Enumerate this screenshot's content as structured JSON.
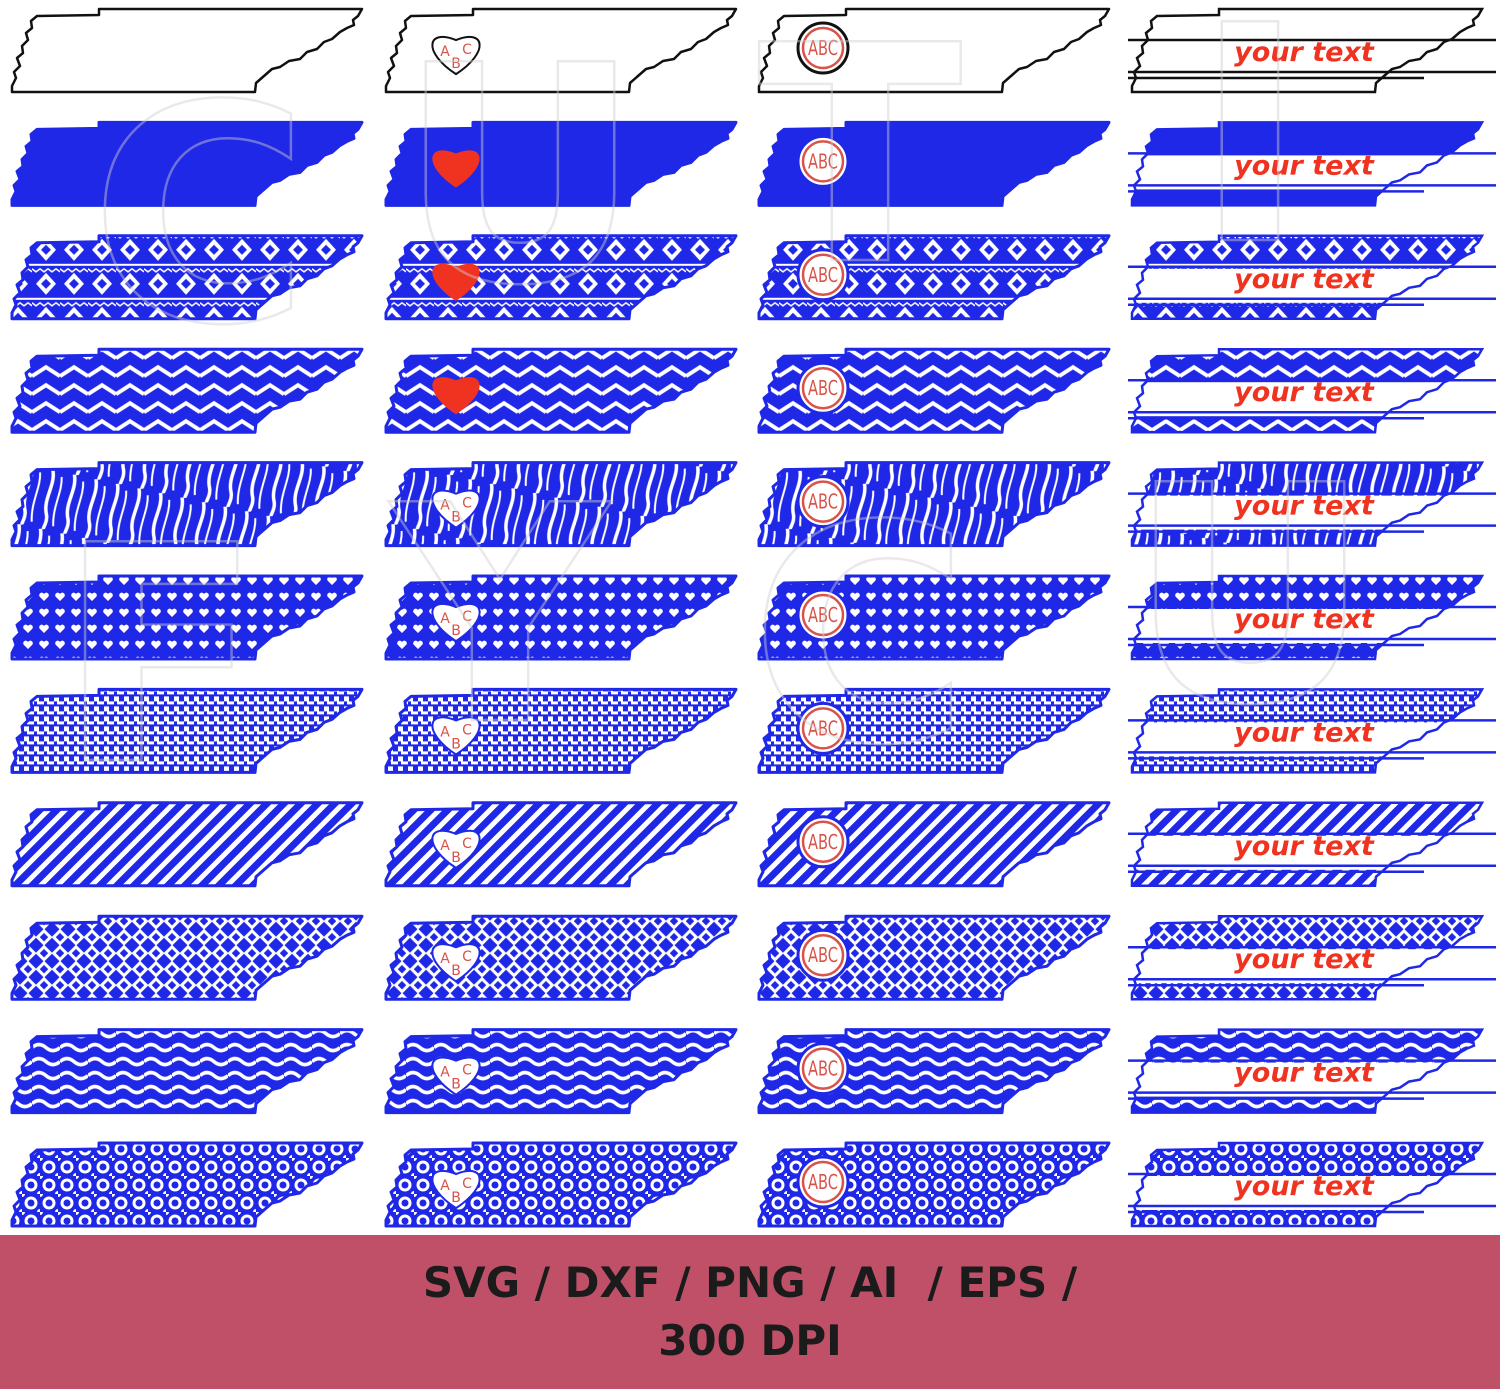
{
  "design": {
    "colors": {
      "fill": "#1f28e6",
      "outline": "#111111",
      "accent": "#f03320",
      "monogram_text": "#d9534a",
      "background": "#ffffff",
      "footer_bg": "#c05068",
      "footer_text": "#1b1b1b",
      "watermark": "#cfcfcf"
    },
    "columns": [
      {
        "variant": "plain"
      },
      {
        "variant": "heart-monogram"
      },
      {
        "variant": "circle-monogram"
      },
      {
        "variant": "split-text"
      }
    ],
    "rows": [
      {
        "pattern": "outline"
      },
      {
        "pattern": "solid"
      },
      {
        "pattern": "aztec"
      },
      {
        "pattern": "chevron"
      },
      {
        "pattern": "zebra"
      },
      {
        "pattern": "hearts"
      },
      {
        "pattern": "houndstooth"
      },
      {
        "pattern": "diagonal-stripes"
      },
      {
        "pattern": "quatrefoil"
      },
      {
        "pattern": "waves"
      },
      {
        "pattern": "moroccan"
      }
    ],
    "heart_monogram_letters": [
      "A",
      "B",
      "C"
    ],
    "circle_monogram_text": "ABC",
    "split_text": "your text",
    "watermark_text": "CUTIFY"
  },
  "footer": {
    "line1": "SVG / DXF / PNG / AI  / EPS /",
    "line2": "300 DPI"
  }
}
